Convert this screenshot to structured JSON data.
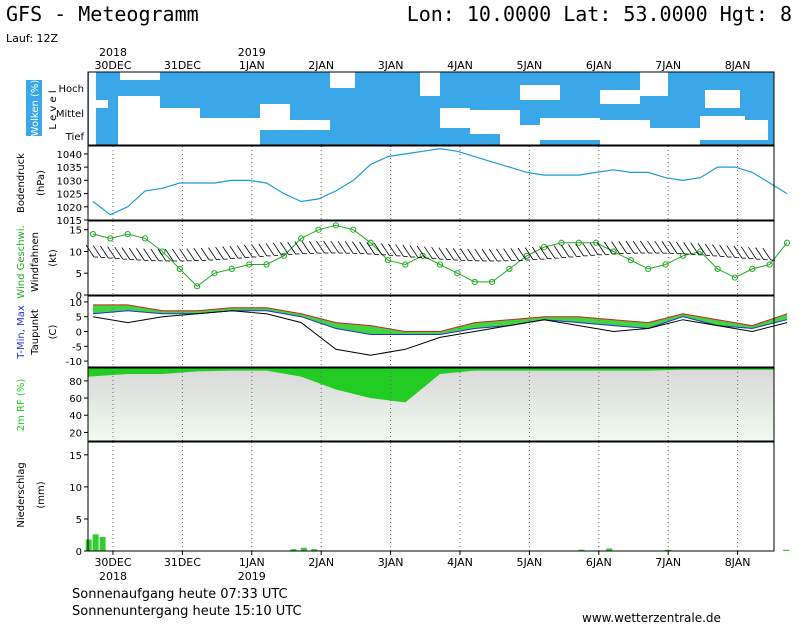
{
  "header": {
    "title": "GFS - Meteogramm",
    "coords": "Lon: 10.0000 Lat: 53.0000 Hgt: 8",
    "run": "Lauf: 12Z"
  },
  "footer": {
    "sunrise": "Sonnenaufgang heute 07:33 UTC",
    "sunset": "Sonnenuntergang heute 15:10 UTC",
    "site": "www.wetterzentrale.de"
  },
  "axis": {
    "top_years": [
      {
        "label": "2018",
        "day": 0
      },
      {
        "label": "2019",
        "day": 2
      }
    ],
    "days": [
      "30DEC",
      "31DEC",
      "1JAN",
      "2JAN",
      "3JAN",
      "4JAN",
      "5JAN",
      "6JAN",
      "7JAN",
      "8JAN"
    ]
  },
  "colors": {
    "cloud": "#3aa7e8",
    "pressure": "#1e9bd6",
    "wind_speed": "#22aa22",
    "rh": "#22cc22",
    "precip": "#33cc33",
    "tmax": "#cc2222",
    "tmin": "#2233cc",
    "dew": "#000000"
  },
  "chart_data": [
    {
      "type": "heatmap",
      "name": "clouds",
      "ylabel": "Wolken (%)",
      "ylabel2": "L e v e l",
      "levels": [
        "Hoch",
        "Mittel",
        "Tief"
      ]
    },
    {
      "type": "line",
      "name": "pressure",
      "ylabel": "Bodendruck",
      "unit": "(hPa)",
      "ylim": [
        1015,
        1043
      ],
      "yticks": [
        1015,
        1020,
        1025,
        1030,
        1035,
        1040
      ],
      "x": [
        0,
        0.25,
        0.5,
        0.75,
        1,
        1.25,
        1.5,
        1.75,
        2,
        2.25,
        2.5,
        2.75,
        3,
        3.25,
        3.5,
        3.75,
        4,
        4.25,
        4.5,
        4.75,
        5,
        5.25,
        5.5,
        5.75,
        6,
        6.25,
        6.5,
        6.75,
        7,
        7.25,
        7.5,
        7.75,
        8,
        8.25,
        8.5,
        8.75,
        9,
        9.25,
        9.5,
        9.75,
        10
      ],
      "values": [
        1022,
        1017,
        1020,
        1026,
        1027,
        1029,
        1029,
        1029,
        1030,
        1030,
        1029,
        1025,
        1022,
        1023,
        1026,
        1030,
        1036,
        1039,
        1040,
        1041,
        1042,
        1041,
        1039,
        1037,
        1035,
        1033,
        1032,
        1032,
        1032,
        1033,
        1034,
        1033,
        1033,
        1031,
        1030,
        1031,
        1035,
        1035,
        1033,
        1029,
        1025
      ]
    },
    {
      "type": "line",
      "name": "wind",
      "ylabel": "Wind Geschwi.",
      "ylabel2": "Windfahnen",
      "unit": "(kt)",
      "ylim": [
        0,
        17
      ],
      "yticks": [
        0,
        5,
        10,
        15
      ],
      "x": [
        0,
        0.25,
        0.5,
        0.75,
        1,
        1.25,
        1.5,
        1.75,
        2,
        2.25,
        2.5,
        2.75,
        3,
        3.25,
        3.5,
        3.75,
        4,
        4.25,
        4.5,
        4.75,
        5,
        5.25,
        5.5,
        5.75,
        6,
        6.25,
        6.5,
        6.75,
        7,
        7.25,
        7.5,
        7.75,
        8,
        8.25,
        8.5,
        8.75,
        9,
        9.25,
        9.5,
        9.75,
        10
      ],
      "values": [
        14,
        13,
        14,
        13,
        10,
        6,
        2,
        5,
        6,
        7,
        7,
        9,
        13,
        15,
        16,
        15,
        12,
        8,
        7,
        9,
        7,
        5,
        3,
        3,
        6,
        9,
        11,
        12,
        12,
        12,
        10,
        8,
        6,
        7,
        9,
        10,
        6,
        4,
        6,
        7,
        12
      ]
    },
    {
      "type": "line",
      "name": "temperature",
      "ylabel": "T-Min, Max",
      "ylabel2": "Taupunkt",
      "unit": "(C)",
      "ylim": [
        -12,
        12
      ],
      "yticks": [
        -10,
        -5,
        0,
        5,
        10
      ],
      "x": [
        0,
        0.5,
        1,
        1.5,
        2,
        2.5,
        3,
        3.5,
        4,
        4.5,
        5,
        5.5,
        6,
        6.5,
        7,
        7.5,
        8,
        8.5,
        9,
        9.5,
        10
      ],
      "tmax": [
        9,
        9,
        7,
        7,
        8,
        8,
        6,
        3,
        2,
        0,
        0,
        3,
        4,
        5,
        5,
        4,
        3,
        6,
        4,
        2,
        6
      ],
      "tmin": [
        6,
        7,
        6,
        6,
        7,
        7,
        5,
        1,
        -1,
        -1,
        -1,
        1,
        2,
        4,
        3,
        2,
        1,
        5,
        2,
        1,
        4
      ],
      "dewpoint": [
        5,
        3,
        5,
        6,
        7,
        6,
        3,
        -6,
        -8,
        -6,
        -2,
        0,
        2,
        4,
        2,
        0,
        1,
        4,
        2,
        0,
        3
      ]
    },
    {
      "type": "area",
      "name": "rh",
      "ylabel": "2m RF (%)",
      "ylim": [
        10,
        95
      ],
      "yticks": [
        20,
        40,
        60,
        80
      ],
      "x": [
        0,
        0.5,
        1,
        1.5,
        2,
        2.5,
        3,
        3.5,
        4,
        4.5,
        5,
        5.5,
        6,
        6.5,
        7,
        7.5,
        8,
        8.5,
        9,
        9.5,
        10
      ],
      "values": [
        85,
        88,
        88,
        91,
        92,
        92,
        85,
        70,
        60,
        55,
        88,
        92,
        92,
        92,
        92,
        92,
        92,
        93,
        93,
        93,
        93
      ]
    },
    {
      "type": "bar",
      "name": "precip",
      "ylabel": "Niederschlag",
      "unit": "(mm)",
      "ylim": [
        0,
        17
      ],
      "yticks": [
        0,
        5,
        10,
        15
      ],
      "x": [
        -0.35,
        -0.25,
        -0.15,
        2.6,
        2.75,
        2.9,
        6.75,
        7.15,
        8.0,
        9.7
      ],
      "values": [
        1.8,
        2.6,
        2.2,
        0.3,
        0.5,
        0.3,
        0.2,
        0.4,
        0.2,
        0.2
      ]
    }
  ]
}
